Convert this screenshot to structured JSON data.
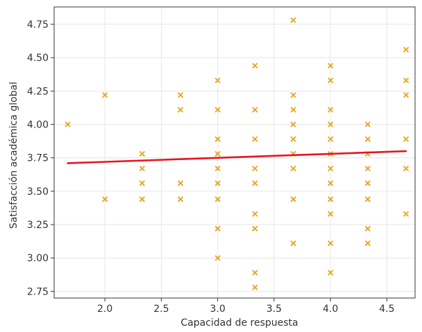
{
  "chart_data": {
    "type": "scatter",
    "title": "",
    "xlabel": "Capacidad de respuesta",
    "ylabel": "Satisfacción académica global",
    "xlim": [
      1.55,
      4.75
    ],
    "ylim": [
      2.7,
      4.88
    ],
    "x_ticks": [
      "2.0",
      "2.5",
      "3.0",
      "3.5",
      "4.0",
      "4.5"
    ],
    "y_ticks": [
      "2.75",
      "3.00",
      "3.25",
      "3.50",
      "3.75",
      "4.00",
      "4.25",
      "4.50",
      "4.75"
    ],
    "grid": true,
    "legend": "none",
    "colors": {
      "points": "#e8a317",
      "trend": "#e8141e",
      "grid": "#e6e6e6",
      "axis": "#333333"
    },
    "series": [
      {
        "marker": "x",
        "points": [
          [
            1.67,
            4.0
          ],
          [
            2.0,
            4.22
          ],
          [
            2.0,
            3.44
          ],
          [
            2.33,
            3.78
          ],
          [
            2.33,
            3.67
          ],
          [
            2.33,
            3.56
          ],
          [
            2.33,
            3.44
          ],
          [
            2.67,
            4.22
          ],
          [
            2.67,
            4.11
          ],
          [
            2.67,
            3.56
          ],
          [
            2.67,
            3.44
          ],
          [
            3.0,
            4.33
          ],
          [
            3.0,
            4.11
          ],
          [
            3.0,
            3.89
          ],
          [
            3.0,
            3.78
          ],
          [
            3.0,
            3.67
          ],
          [
            3.0,
            3.56
          ],
          [
            3.0,
            3.44
          ],
          [
            3.0,
            3.22
          ],
          [
            3.0,
            3.0
          ],
          [
            3.33,
            4.44
          ],
          [
            3.33,
            4.11
          ],
          [
            3.33,
            3.89
          ],
          [
            3.33,
            3.67
          ],
          [
            3.33,
            3.56
          ],
          [
            3.33,
            3.33
          ],
          [
            3.33,
            3.22
          ],
          [
            3.33,
            2.89
          ],
          [
            3.33,
            2.78
          ],
          [
            3.67,
            4.78
          ],
          [
            3.67,
            4.22
          ],
          [
            3.67,
            4.11
          ],
          [
            3.67,
            4.0
          ],
          [
            3.67,
            3.89
          ],
          [
            3.67,
            3.78
          ],
          [
            3.67,
            3.67
          ],
          [
            3.67,
            3.44
          ],
          [
            3.67,
            3.11
          ],
          [
            4.0,
            4.44
          ],
          [
            4.0,
            4.33
          ],
          [
            4.0,
            4.11
          ],
          [
            4.0,
            4.0
          ],
          [
            4.0,
            3.89
          ],
          [
            4.0,
            3.78
          ],
          [
            4.0,
            3.67
          ],
          [
            4.0,
            3.56
          ],
          [
            4.0,
            3.44
          ],
          [
            4.0,
            3.33
          ],
          [
            4.0,
            3.11
          ],
          [
            4.0,
            2.89
          ],
          [
            4.33,
            4.0
          ],
          [
            4.33,
            3.89
          ],
          [
            4.33,
            3.78
          ],
          [
            4.33,
            3.67
          ],
          [
            4.33,
            3.56
          ],
          [
            4.33,
            3.44
          ],
          [
            4.33,
            3.22
          ],
          [
            4.33,
            3.11
          ],
          [
            4.67,
            4.56
          ],
          [
            4.67,
            4.33
          ],
          [
            4.67,
            4.22
          ],
          [
            4.67,
            3.89
          ],
          [
            4.67,
            3.67
          ],
          [
            4.67,
            3.33
          ]
        ]
      }
    ],
    "trendline": {
      "x": [
        1.67,
        4.67
      ],
      "y": [
        3.71,
        3.8
      ]
    }
  }
}
